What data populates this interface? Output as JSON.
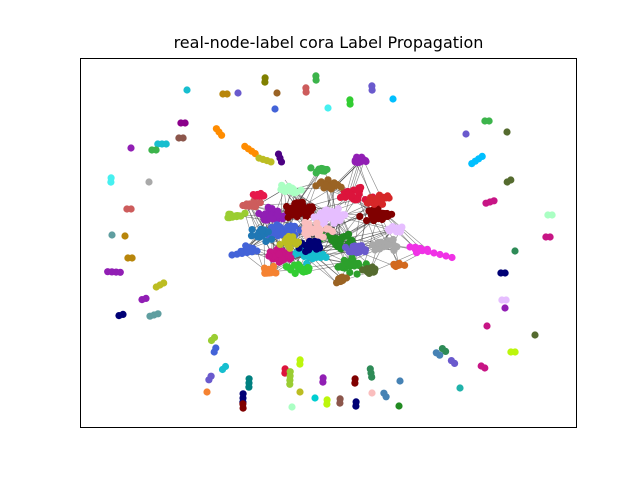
{
  "figure": {
    "title": "real-node-label cora Label Propagation"
  },
  "graph": {
    "type": "network",
    "layout": "spring",
    "axes_frame": true,
    "ticks": false,
    "palette": [
      "#e6194b",
      "#3cb44b",
      "#4363d8",
      "#f58231",
      "#911eb4",
      "#46f0f0",
      "#f032e6",
      "#bcf60c",
      "#fabebe",
      "#008080",
      "#e6beff",
      "#9a6324",
      "#800000",
      "#aaffc3",
      "#808000",
      "#000075",
      "#a9a9a9",
      "#1f77b4",
      "#2ca02c",
      "#d62728",
      "#9467bd",
      "#17becf",
      "#bcbd22",
      "#8c564b",
      "#e377c2",
      "#7f7f7f",
      "#ffd700",
      "#00ced1",
      "#ff1493",
      "#32cd32",
      "#4b0082",
      "#b8860b",
      "#5f9ea0",
      "#dc143c",
      "#00bfff",
      "#8b008b",
      "#228b22",
      "#ff8c00",
      "#6a5acd",
      "#20b2aa",
      "#cd5c5c",
      "#9acd32",
      "#ba55d3",
      "#2e8b57",
      "#d2691e",
      "#4682b4",
      "#c71585",
      "#556b2f",
      "#1e90ff",
      "#b22222"
    ],
    "edge_color": "#333333"
  }
}
